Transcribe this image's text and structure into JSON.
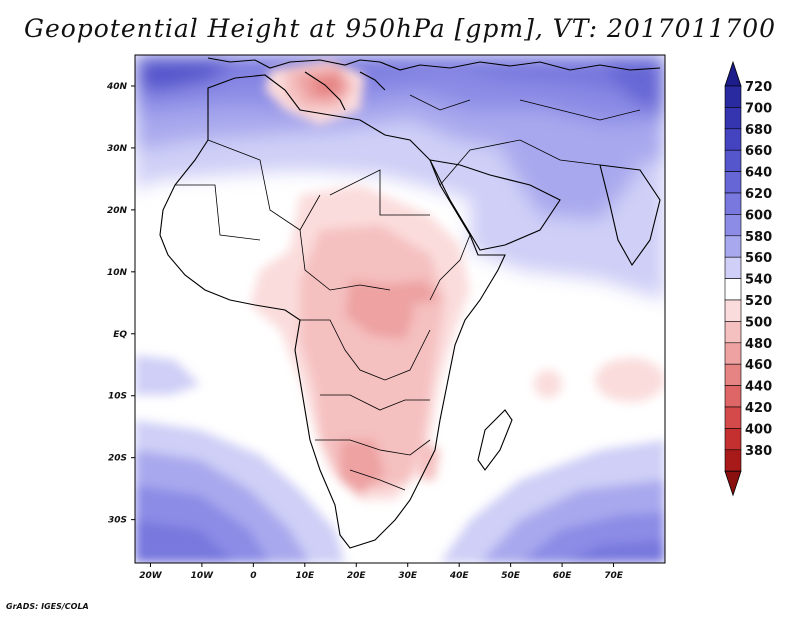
{
  "title": "Geopotential Height at 950hPa [gpm], VT: 2017011700",
  "footer": "GrADS: IGES/COLA",
  "map": {
    "lat_range": [
      -37,
      45
    ],
    "lon_range": [
      -23,
      80
    ],
    "lat_ticks": [
      {
        "value": 40,
        "label": "40N"
      },
      {
        "value": 30,
        "label": "30N"
      },
      {
        "value": 20,
        "label": "20N"
      },
      {
        "value": 10,
        "label": "10N"
      },
      {
        "value": 0,
        "label": "EQ"
      },
      {
        "value": -10,
        "label": "10S"
      },
      {
        "value": -20,
        "label": "20S"
      },
      {
        "value": -30,
        "label": "30S"
      }
    ],
    "lon_ticks": [
      {
        "value": -20,
        "label": "20W"
      },
      {
        "value": -10,
        "label": "10W"
      },
      {
        "value": 0,
        "label": "0"
      },
      {
        "value": 10,
        "label": "10E"
      },
      {
        "value": 20,
        "label": "20E"
      },
      {
        "value": 30,
        "label": "30E"
      },
      {
        "value": 40,
        "label": "40E"
      },
      {
        "value": 50,
        "label": "50E"
      },
      {
        "value": 60,
        "label": "60E"
      },
      {
        "value": 70,
        "label": "70E"
      }
    ]
  },
  "colorbar": {
    "levels": [
      {
        "label": "720",
        "color": "#2a2aa0"
      },
      {
        "label": "700",
        "color": "#3535b0"
      },
      {
        "label": "680",
        "color": "#4444c0"
      },
      {
        "label": "660",
        "color": "#5555cc"
      },
      {
        "label": "640",
        "color": "#6666d6"
      },
      {
        "label": "620",
        "color": "#7878de"
      },
      {
        "label": "600",
        "color": "#8c8ce6"
      },
      {
        "label": "580",
        "color": "#a8a8ee"
      },
      {
        "label": "560",
        "color": "#cfcff7"
      },
      {
        "label": "540",
        "color": "#ffffff"
      },
      {
        "label": "520",
        "color": "#fbdcdc"
      },
      {
        "label": "500",
        "color": "#f5c0c0"
      },
      {
        "label": "480",
        "color": "#eea2a2"
      },
      {
        "label": "460",
        "color": "#e68484"
      },
      {
        "label": "440",
        "color": "#de6666"
      },
      {
        "label": "420",
        "color": "#d44a4a"
      },
      {
        "label": "400",
        "color": "#c43030"
      },
      {
        "label": "380",
        "color": "#a81a1a"
      }
    ],
    "top_arrow_color": "#1c1c8a",
    "bottom_arrow_color": "#8a1010"
  }
}
